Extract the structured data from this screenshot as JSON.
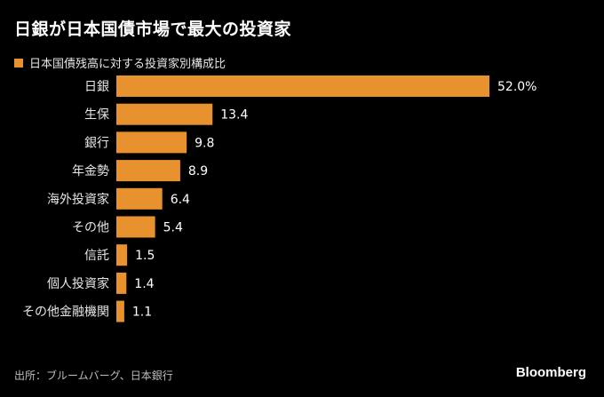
{
  "title": "日銀が日本国債市場で最大の投資家",
  "legend": "日本国債残高に対する投資家別構成比",
  "colors": {
    "bar": "#e8922f",
    "background": "#000000",
    "text": "#ffffff"
  },
  "chart_data": {
    "type": "bar",
    "orientation": "horizontal",
    "title": "日銀が日本国債市場で最大の投資家",
    "series_name": "日本国債残高に対する投資家別構成比",
    "categories": [
      "日銀",
      "生保",
      "銀行",
      "年金勢",
      "海外投資家",
      "その他",
      "信託",
      "個人投資家",
      "その他金融機関"
    ],
    "values": [
      52.0,
      13.4,
      9.8,
      8.9,
      6.4,
      5.4,
      1.5,
      1.4,
      1.1
    ],
    "value_labels": [
      "52.0%",
      "13.4",
      "9.8",
      "8.9",
      "6.4",
      "5.4",
      "1.5",
      "1.4",
      "1.1"
    ],
    "xlim": [
      0,
      52.0
    ],
    "xlabel": "",
    "ylabel": ""
  },
  "footer": {
    "source": "出所：ブルームバーグ、日本銀行",
    "brand": "Bloomberg"
  }
}
